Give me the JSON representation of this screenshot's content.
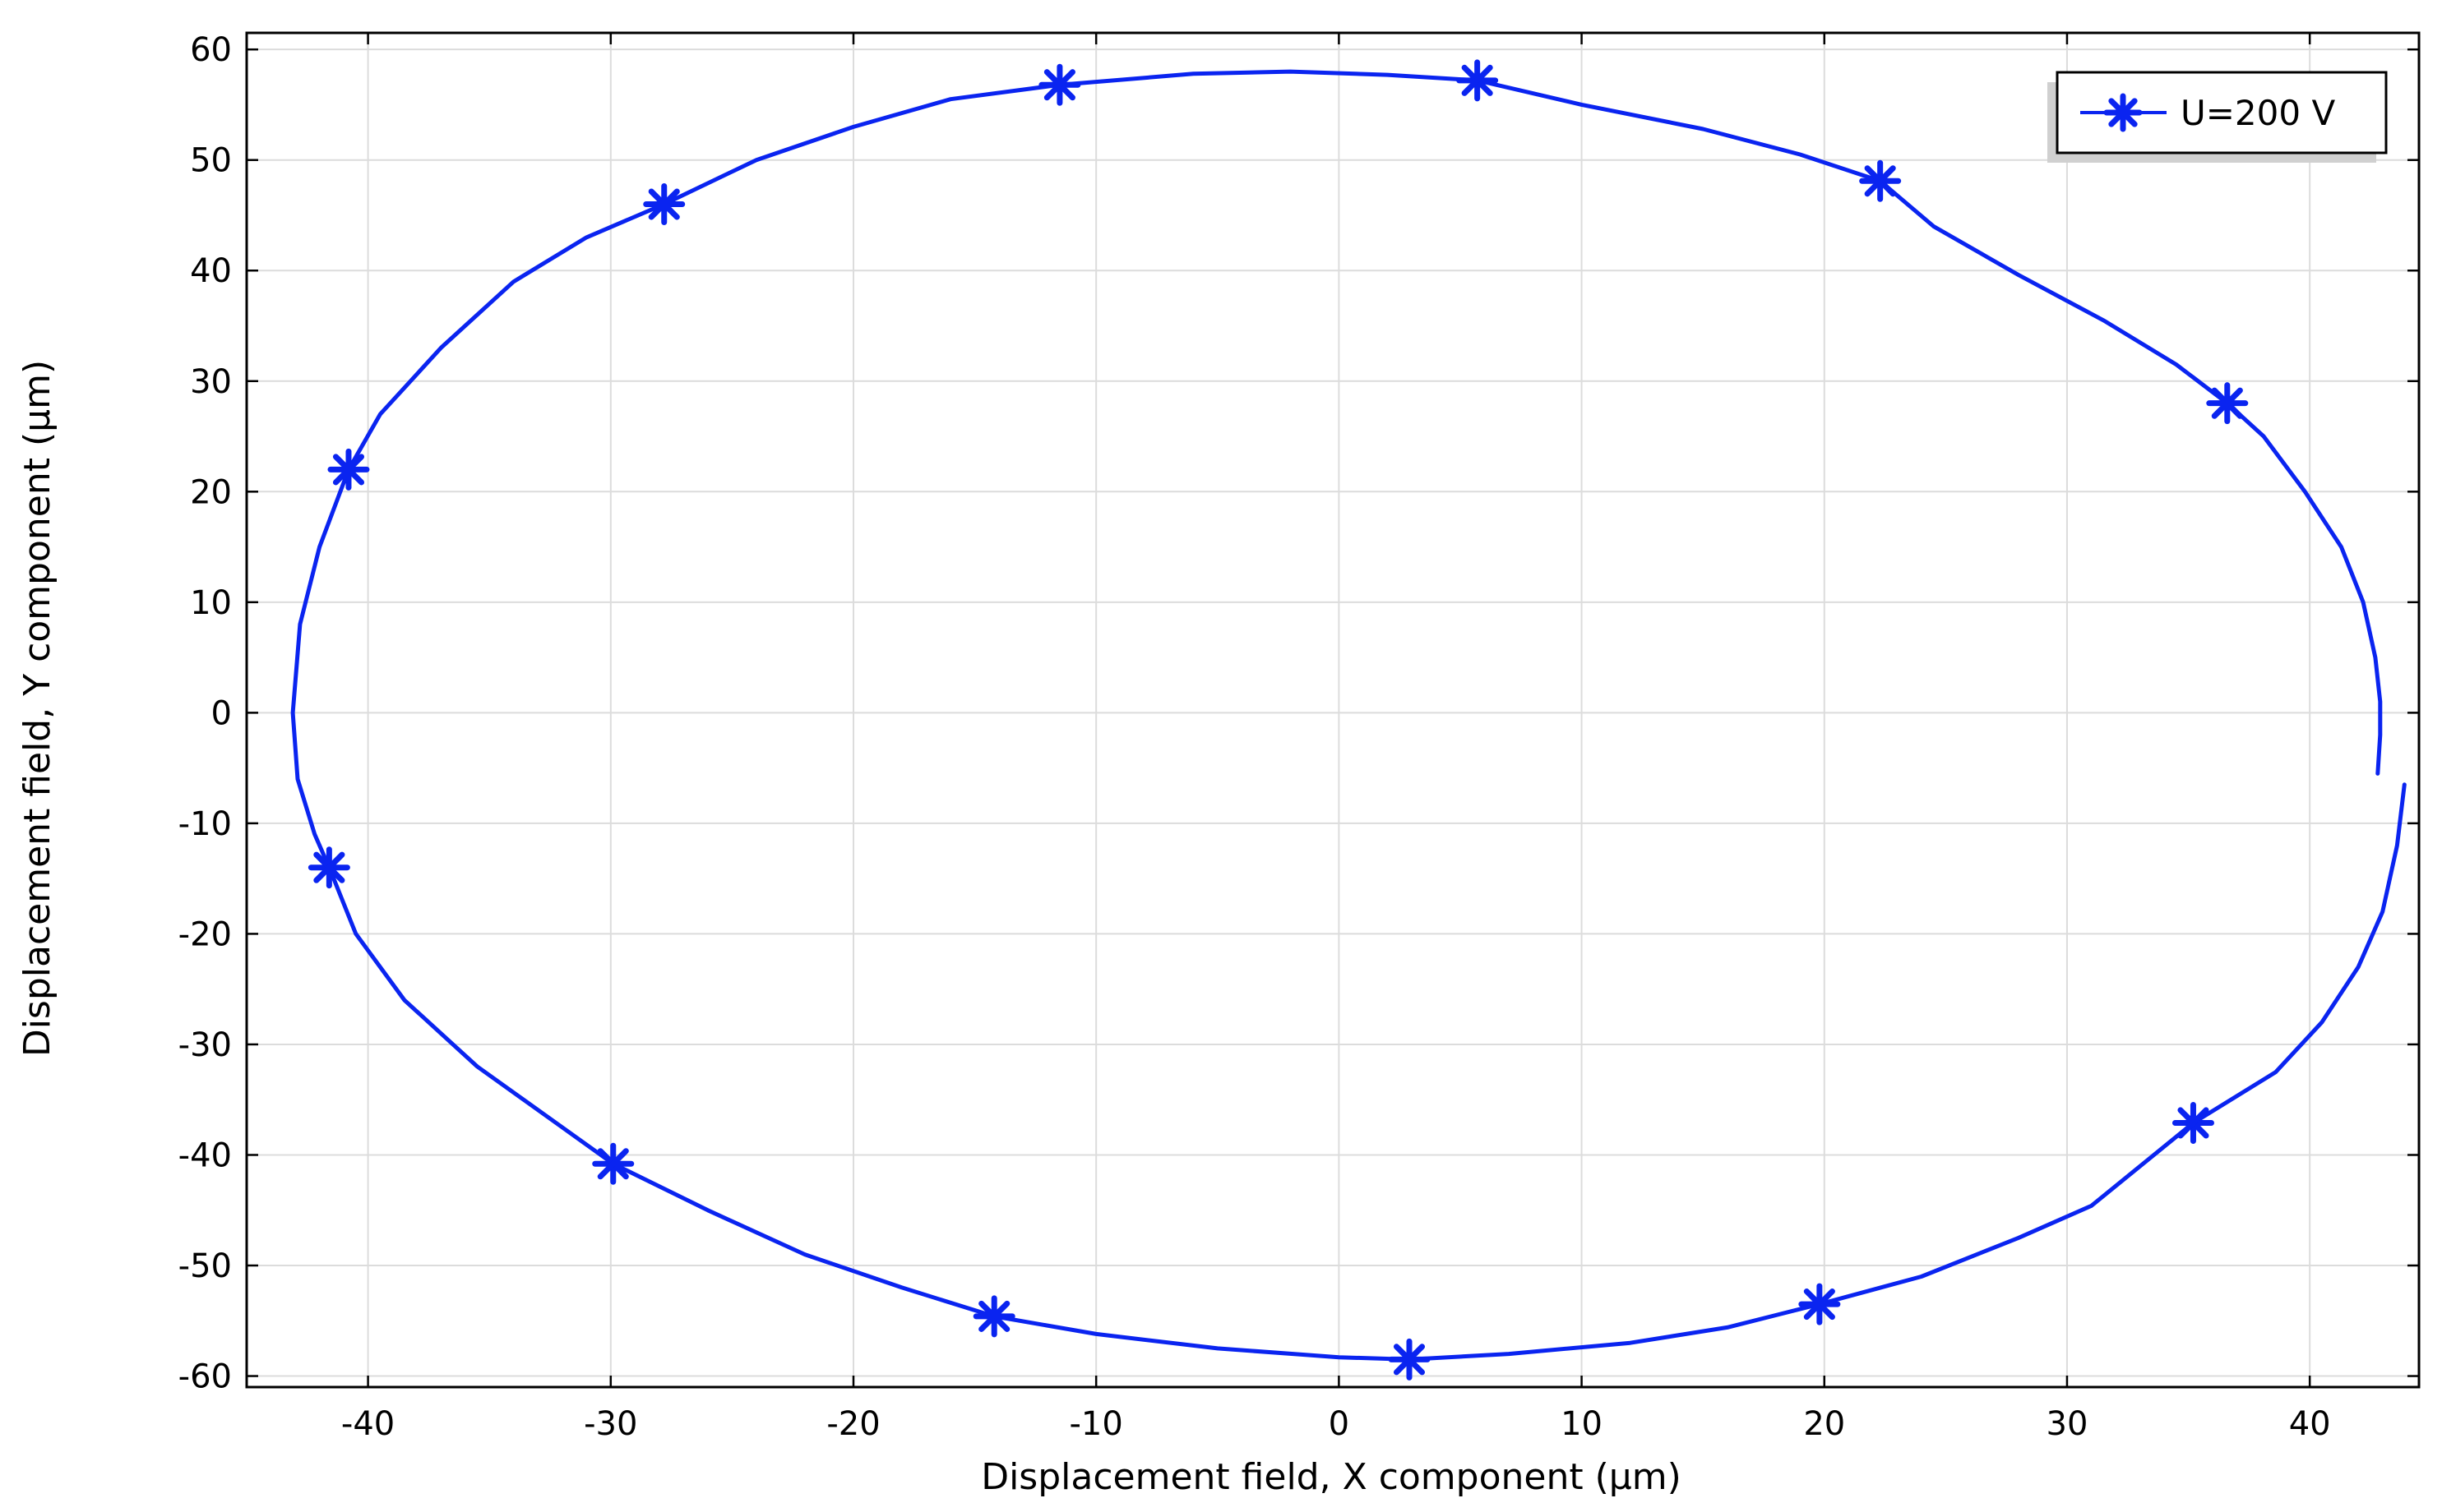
{
  "chart_data": {
    "type": "line",
    "title": "",
    "xlabel": "Displacement field, X component (µm)",
    "ylabel": "Displacement field, Y component (µm)",
    "xlim": [
      -45,
      44.5
    ],
    "ylim": [
      -61,
      61.5
    ],
    "x_ticks": [
      -40,
      -30,
      -20,
      -10,
      0,
      10,
      20,
      30,
      40
    ],
    "y_ticks": [
      60,
      50,
      40,
      30,
      20,
      10,
      0,
      -10,
      -20,
      -30,
      -40,
      -50,
      -60
    ],
    "grid": true,
    "legend_position": "top-right",
    "series": [
      {
        "name": "U=200 V",
        "color": "#0a24f0",
        "marker": "asterisk",
        "curve": [
          [
            42.8,
            -5.5
          ],
          [
            42.9,
            -2
          ],
          [
            42.9,
            1
          ],
          [
            42.7,
            5
          ],
          [
            42.2,
            10
          ],
          [
            41.3,
            15
          ],
          [
            39.8,
            20
          ],
          [
            38.1,
            25
          ],
          [
            36.6,
            28
          ],
          [
            34.5,
            31.5
          ],
          [
            31.5,
            35.5
          ],
          [
            28,
            39.6
          ],
          [
            24.5,
            44
          ],
          [
            22.3,
            48.1
          ],
          [
            19,
            50.5
          ],
          [
            15,
            52.8
          ],
          [
            10,
            55
          ],
          [
            5.7,
            57.2
          ],
          [
            2,
            57.7
          ],
          [
            -2,
            58
          ],
          [
            -6,
            57.8
          ],
          [
            -11.5,
            56.8
          ],
          [
            -16,
            55.5
          ],
          [
            -20,
            53
          ],
          [
            -24,
            50
          ],
          [
            -27.8,
            46
          ],
          [
            -31,
            43
          ],
          [
            -34,
            39
          ],
          [
            -37,
            33
          ],
          [
            -39.5,
            27
          ],
          [
            -40.8,
            22
          ],
          [
            -42,
            15
          ],
          [
            -42.8,
            8
          ],
          [
            -43.1,
            0
          ],
          [
            -42.9,
            -6
          ],
          [
            -42.2,
            -11
          ],
          [
            -41.6,
            -14
          ],
          [
            -40.5,
            -20
          ],
          [
            -38.5,
            -26
          ],
          [
            -35.5,
            -32
          ],
          [
            -32,
            -37.5
          ],
          [
            -29.9,
            -40.8
          ],
          [
            -26,
            -45
          ],
          [
            -22,
            -49
          ],
          [
            -18,
            -52
          ],
          [
            -14.2,
            -54.6
          ],
          [
            -10,
            -56.2
          ],
          [
            -5,
            -57.5
          ],
          [
            0,
            -58.3
          ],
          [
            2.9,
            -58.5
          ],
          [
            7,
            -58
          ],
          [
            12,
            -57
          ],
          [
            16,
            -55.6
          ],
          [
            19.8,
            -53.5
          ],
          [
            24,
            -51
          ],
          [
            28,
            -47.5
          ],
          [
            31,
            -44.6
          ],
          [
            35.2,
            -37.1
          ],
          [
            38.6,
            -32.5
          ],
          [
            40.5,
            -28
          ],
          [
            42,
            -23
          ],
          [
            43,
            -18
          ],
          [
            43.6,
            -12
          ],
          [
            43.9,
            -6.5
          ]
        ],
        "markers": [
          [
            5.7,
            57.2
          ],
          [
            22.3,
            48.1
          ],
          [
            36.6,
            28
          ],
          [
            -11.5,
            56.8
          ],
          [
            -27.8,
            46
          ],
          [
            -40.8,
            22
          ],
          [
            -41.6,
            -14
          ],
          [
            -29.9,
            -40.8
          ],
          [
            -14.2,
            -54.6
          ],
          [
            2.9,
            -58.5
          ],
          [
            19.8,
            -53.5
          ],
          [
            35.2,
            -37.1
          ]
        ]
      }
    ]
  }
}
